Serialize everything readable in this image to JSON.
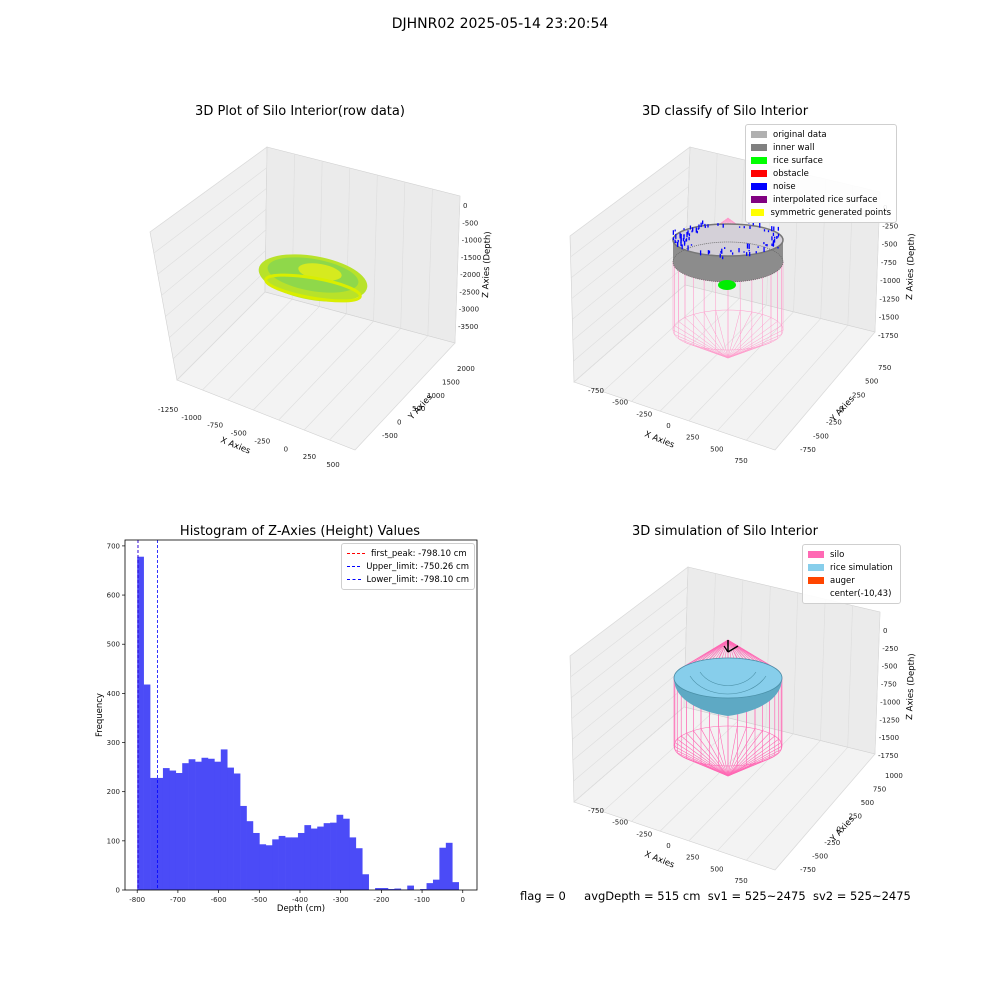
{
  "suptitle": "DJHNR02 2025-05-14 23:20:54",
  "footer": {
    "flag": "flag = 0",
    "avg": "avgDepth = 515 cm",
    "sv1": "sv1 = 525~2475",
    "sv2": "sv2 = 525~2475"
  },
  "colors": {
    "pane": "#f2f2f2",
    "grid": "#dcdcdc",
    "hist": "#4b4bf7",
    "silo": "#ff69b4",
    "rice": "#87ceeb",
    "auger": "#ff4500"
  },
  "chart_data": [
    {
      "type": "scatter3d",
      "title": "3D Plot of Silo Interior(row data)",
      "xlabel": "X Axies",
      "ylabel": "Y Axies",
      "zlabel": "Z Axies (Depth)",
      "x_ticks": [
        "-1250",
        "-1000",
        "-750",
        "-500",
        "-250",
        "0",
        "250",
        "500"
      ],
      "y_ticks": [
        "-500",
        "0",
        "500",
        "1000",
        "1500",
        "2000"
      ],
      "z_ticks": [
        "0",
        "-500",
        "-1000",
        "-1500",
        "-2000",
        "-2500",
        "-3000",
        "-3500"
      ]
    },
    {
      "type": "scatter3d",
      "title": "3D classify of Silo Interior",
      "xlabel": "X Axies",
      "ylabel": "Y Axies",
      "zlabel": "Z Axies (Depth)",
      "x_ticks": [
        "-750",
        "-500",
        "-250",
        "0",
        "250",
        "500",
        "750"
      ],
      "y_ticks": [
        "-750",
        "-500",
        "-250",
        "0",
        "250",
        "500",
        "750"
      ],
      "z_ticks": [
        "0",
        "-250",
        "-500",
        "-750",
        "-1000",
        "-1250",
        "-1500",
        "-1750"
      ],
      "legend": [
        {
          "label": "original data",
          "color": "#b0b0b0"
        },
        {
          "label": "inner wall",
          "color": "#808080"
        },
        {
          "label": "rice surface",
          "color": "#00ff00"
        },
        {
          "label": "obstacle",
          "color": "#ff0000"
        },
        {
          "label": "noise",
          "color": "#0000ff"
        },
        {
          "label": "interpolated rice surface",
          "color": "#800080"
        },
        {
          "label": "symmetric generated points",
          "color": "#ffff00"
        }
      ]
    },
    {
      "type": "bar",
      "title": "Histogram of Z-Axies (Height) Values",
      "xlabel": "Depth (cm)",
      "ylabel": "Frequency",
      "xlim": [
        -830,
        35
      ],
      "ylim": [
        0,
        712
      ],
      "x_ticks": [
        -800,
        -700,
        -600,
        -500,
        -400,
        -300,
        -200,
        -100,
        0
      ],
      "y_ticks": [
        0,
        100,
        200,
        300,
        400,
        500,
        600,
        700
      ],
      "bin_start": -800,
      "bin_width": 15.8,
      "values": [
        678,
        418,
        228,
        228,
        248,
        243,
        238,
        258,
        266,
        261,
        269,
        267,
        261,
        286,
        249,
        237,
        171,
        140,
        116,
        93,
        91,
        103,
        110,
        107,
        107,
        116,
        132,
        125,
        129,
        136,
        137,
        153,
        145,
        107,
        85,
        32,
        0,
        4,
        4,
        2,
        3,
        1,
        9,
        0,
        2,
        14,
        21,
        86,
        96,
        16
      ],
      "lines": [
        {
          "label": "first_peak: -798.10 cm",
          "x": -798.1,
          "color": "#ff0000"
        },
        {
          "label": "Upper_limit: -750.26 cm",
          "x": -750.26,
          "color": "#0000ff"
        },
        {
          "label": "Lower_limit: -798.10 cm",
          "x": -798.1,
          "color": "#0000ff"
        }
      ]
    },
    {
      "type": "surface3d",
      "title": "3D simulation of Silo Interior",
      "xlabel": "X Axies",
      "ylabel": "Y Axies",
      "zlabel": "Z Axies (Depth)",
      "x_ticks": [
        "-750",
        "-500",
        "-250",
        "0",
        "250",
        "500",
        "750"
      ],
      "y_ticks": [
        "-750",
        "-500",
        "-250",
        "0",
        "250",
        "500",
        "750",
        "1000"
      ],
      "z_ticks": [
        "0",
        "-250",
        "-500",
        "-750",
        "-1000",
        "-1250",
        "-1500",
        "-1750"
      ],
      "legend": [
        {
          "label": "silo",
          "color": "#ff69b4"
        },
        {
          "label": "rice simulation",
          "color": "#87ceeb"
        },
        {
          "label": "auger",
          "color": "#ff4500"
        },
        {
          "label": "center(-10,43)",
          "color": ""
        }
      ]
    }
  ]
}
